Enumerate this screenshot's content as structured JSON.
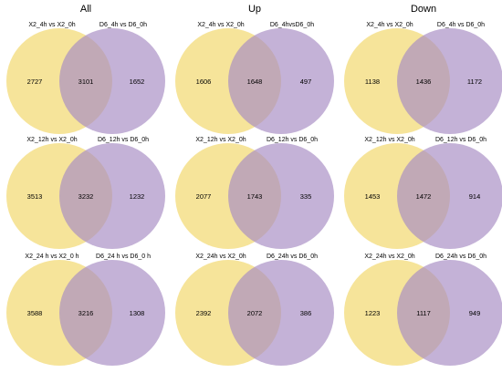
{
  "colors": {
    "left_circle": "#f3dc7d",
    "right_circle": "#a88dc4",
    "background": "#ffffff"
  },
  "columns": [
    {
      "title": "All"
    },
    {
      "title": "Up"
    },
    {
      "title": "Down"
    }
  ],
  "panels": [
    {
      "left_label": "X2_4h vs X2_0h",
      "right_label": "D6_4h vs D6_0h",
      "left_only": "2727",
      "overlap": "3101",
      "right_only": "1652"
    },
    {
      "left_label": "X2_4h vs X2_0h",
      "right_label": "D6_4hvsD6_0h",
      "left_only": "1606",
      "overlap": "1648",
      "right_only": "497"
    },
    {
      "left_label": "X2_4h vs X2_0h",
      "right_label": "D6_4h vs D6_0h",
      "left_only": "1138",
      "overlap": "1436",
      "right_only": "1172"
    },
    {
      "left_label": "X2_12h vs X2_0h",
      "right_label": "D6_12h vs D6_0h",
      "left_only": "3513",
      "overlap": "3232",
      "right_only": "1232"
    },
    {
      "left_label": "X2_12h vs X2_0h",
      "right_label": "D6_12h vs D6_0h",
      "left_only": "2077",
      "overlap": "1743",
      "right_only": "335"
    },
    {
      "left_label": "X2_12h vs X2_0h",
      "right_label": "D6_12h vs D6_0h",
      "left_only": "1453",
      "overlap": "1472",
      "right_only": "914"
    },
    {
      "left_label": "X2_24 h vs X2_0 h",
      "right_label": "D6_24 h vs D6_0 h",
      "left_only": "3588",
      "overlap": "3216",
      "right_only": "1308"
    },
    {
      "left_label": "X2_24h vs X2_0h",
      "right_label": "D6_24h vs D6_0h",
      "left_only": "2392",
      "overlap": "2072",
      "right_only": "386"
    },
    {
      "left_label": "X2_24h vs X2_0h",
      "right_label": "D6_24h vs D6_0h",
      "left_only": "1223",
      "overlap": "1117",
      "right_only": "949"
    }
  ]
}
